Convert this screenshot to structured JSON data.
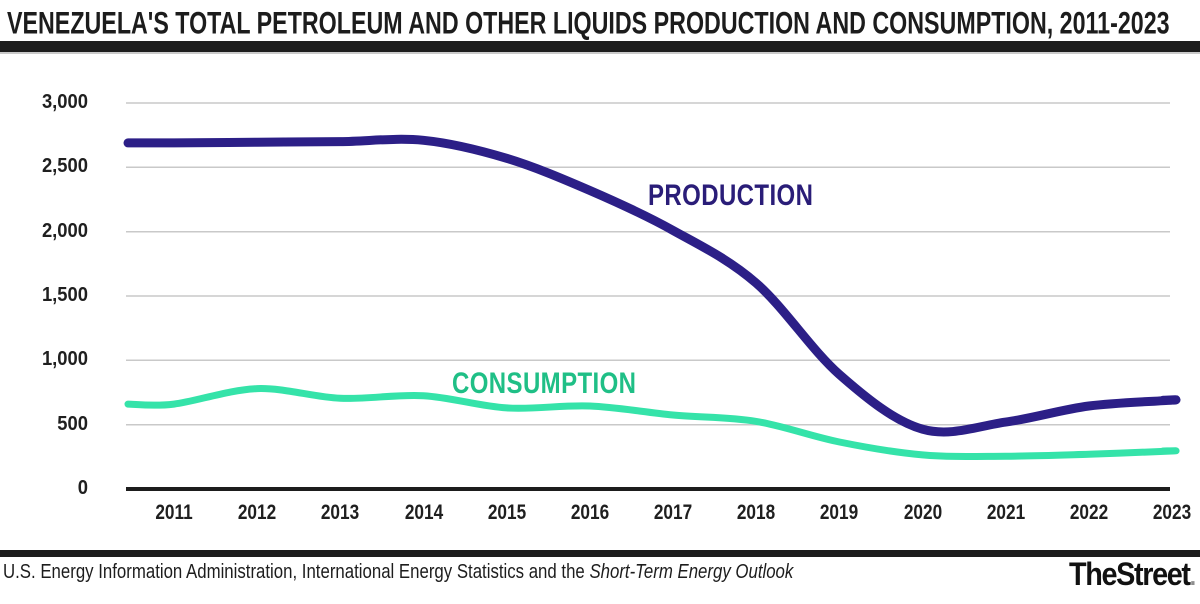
{
  "header": {
    "title": "VENEZUELA'S TOTAL PETROLEUM AND OTHER LIQUIDS PRODUCTION AND CONSUMPTION, 2011-2023"
  },
  "footer": {
    "source_regular": "U.S. Energy Information Administration, International Energy Statistics and the ",
    "source_italic": "Short-Term Energy Outlook",
    "brand": "TheStreet",
    "brand_dot": "."
  },
  "colors": {
    "ink": "#1d1d1d",
    "rule_gray": "#c9c9c9",
    "gridline": "#c9c9c9",
    "production": "#2c1f87",
    "production_label": "#2a1d78",
    "consumption": "#35e3a9",
    "consumption_label": "#1fbf86"
  },
  "chart_data": {
    "type": "line",
    "title": "VENEZUELA'S TOTAL PETROLEUM AND OTHER LIQUIDS PRODUCTION AND CONSUMPTION, 2011-2023",
    "categories": [
      "2011",
      "2012",
      "2013",
      "2014",
      "2015",
      "2016",
      "2017",
      "2018",
      "2019",
      "2020",
      "2021",
      "2022",
      "2023"
    ],
    "series": [
      {
        "name": "PRODUCTION",
        "color_key": "production",
        "values": [
          2690,
          2695,
          2700,
          2710,
          2570,
          2320,
          2010,
          1600,
          890,
          465,
          520,
          645,
          690
        ]
      },
      {
        "name": "CONSUMPTION",
        "color_key": "consumption",
        "values": [
          660,
          780,
          705,
          725,
          630,
          645,
          575,
          525,
          365,
          265,
          255,
          270,
          295
        ]
      }
    ],
    "xlabel": "",
    "ylabel": "",
    "ylim": [
      0,
      3000
    ],
    "ytick_values": [
      0,
      500,
      1000,
      1500,
      2000,
      2500,
      3000
    ],
    "ytick_labels": [
      "0",
      "500",
      "1,000",
      "1,500",
      "2,000",
      "2,500",
      "3,000"
    ],
    "grid": "horizontal gridlines on",
    "legend": "inline series labels on plot"
  }
}
